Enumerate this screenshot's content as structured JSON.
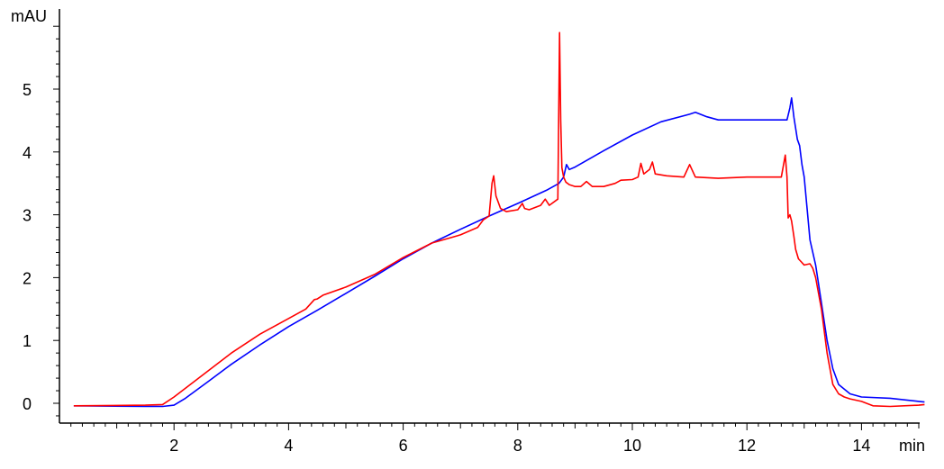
{
  "chart_data": {
    "type": "line",
    "title": "",
    "xlabel": "",
    "ylabel": "",
    "x_unit": "min",
    "y_unit": "mAU",
    "xlim": [
      0,
      15.1
    ],
    "ylim": [
      -0.35,
      6.2
    ],
    "x_ticks": [
      2,
      4,
      6,
      8,
      10,
      12,
      14
    ],
    "y_ticks": [
      0,
      1,
      2,
      3,
      4,
      5
    ],
    "grid": false,
    "legend": "none",
    "series": [
      {
        "color": "#0000ff",
        "x": [
          0.25,
          1.5,
          1.8,
          2.0,
          2.2,
          2.6,
          3.0,
          3.5,
          4.0,
          4.5,
          5.0,
          5.5,
          6.0,
          6.5,
          7.0,
          7.5,
          8.0,
          8.5,
          8.72,
          8.8,
          8.85,
          8.9,
          9.0,
          9.5,
          10.0,
          10.5,
          11.0,
          11.1,
          11.3,
          11.5,
          12.0,
          12.5,
          12.7,
          12.75,
          12.78,
          12.82,
          12.88,
          12.92,
          12.96,
          13.0,
          13.05,
          13.1,
          13.2,
          13.3,
          13.4,
          13.5,
          13.6,
          13.8,
          14.0,
          14.5,
          15.0,
          15.1
        ],
        "y": [
          -0.04,
          -0.05,
          -0.05,
          -0.03,
          0.08,
          0.35,
          0.62,
          0.93,
          1.22,
          1.48,
          1.75,
          2.02,
          2.3,
          2.55,
          2.77,
          2.98,
          3.18,
          3.39,
          3.5,
          3.6,
          3.8,
          3.72,
          3.76,
          4.02,
          4.27,
          4.48,
          4.6,
          4.63,
          4.56,
          4.51,
          4.51,
          4.51,
          4.51,
          4.7,
          4.86,
          4.55,
          4.2,
          4.1,
          3.8,
          3.6,
          3.1,
          2.6,
          2.2,
          1.6,
          1.0,
          0.55,
          0.3,
          0.15,
          0.1,
          0.08,
          0.03,
          0.02
        ]
      },
      {
        "color": "#ff0000",
        "x": [
          0.25,
          1.5,
          1.8,
          2.0,
          2.5,
          3.0,
          3.5,
          4.0,
          4.3,
          4.45,
          4.5,
          4.6,
          5.0,
          5.5,
          6.0,
          6.5,
          7.0,
          7.3,
          7.4,
          7.5,
          7.55,
          7.58,
          7.62,
          7.7,
          7.8,
          8.0,
          8.08,
          8.12,
          8.2,
          8.4,
          8.48,
          8.55,
          8.7,
          8.73,
          8.75,
          8.77,
          8.8,
          8.84,
          8.9,
          9.0,
          9.1,
          9.2,
          9.3,
          9.5,
          9.7,
          9.8,
          10.0,
          10.1,
          10.15,
          10.2,
          10.3,
          10.35,
          10.4,
          10.6,
          10.9,
          11.0,
          11.1,
          11.5,
          12.0,
          12.5,
          12.6,
          12.67,
          12.7,
          12.72,
          12.75,
          12.78,
          12.82,
          12.85,
          12.9,
          13.0,
          13.1,
          13.15,
          13.2,
          13.3,
          13.4,
          13.5,
          13.6,
          13.7,
          13.8,
          14.0,
          14.2,
          14.5,
          15.0,
          15.1
        ],
        "y": [
          -0.04,
          -0.03,
          -0.02,
          0.1,
          0.45,
          0.8,
          1.1,
          1.35,
          1.5,
          1.65,
          1.66,
          1.72,
          1.85,
          2.05,
          2.32,
          2.55,
          2.68,
          2.8,
          2.92,
          2.98,
          3.5,
          3.62,
          3.3,
          3.1,
          3.05,
          3.08,
          3.18,
          3.1,
          3.08,
          3.15,
          3.25,
          3.15,
          3.25,
          5.9,
          4.5,
          3.75,
          3.6,
          3.52,
          3.48,
          3.45,
          3.45,
          3.53,
          3.45,
          3.45,
          3.5,
          3.55,
          3.56,
          3.6,
          3.82,
          3.65,
          3.72,
          3.84,
          3.65,
          3.62,
          3.6,
          3.8,
          3.6,
          3.58,
          3.6,
          3.6,
          3.6,
          3.95,
          3.6,
          2.95,
          3.0,
          2.9,
          2.65,
          2.45,
          2.3,
          2.2,
          2.22,
          2.15,
          2.0,
          1.5,
          0.8,
          0.3,
          0.15,
          0.1,
          0.07,
          0.03,
          -0.04,
          -0.05,
          -0.03,
          -0.02
        ]
      }
    ]
  }
}
